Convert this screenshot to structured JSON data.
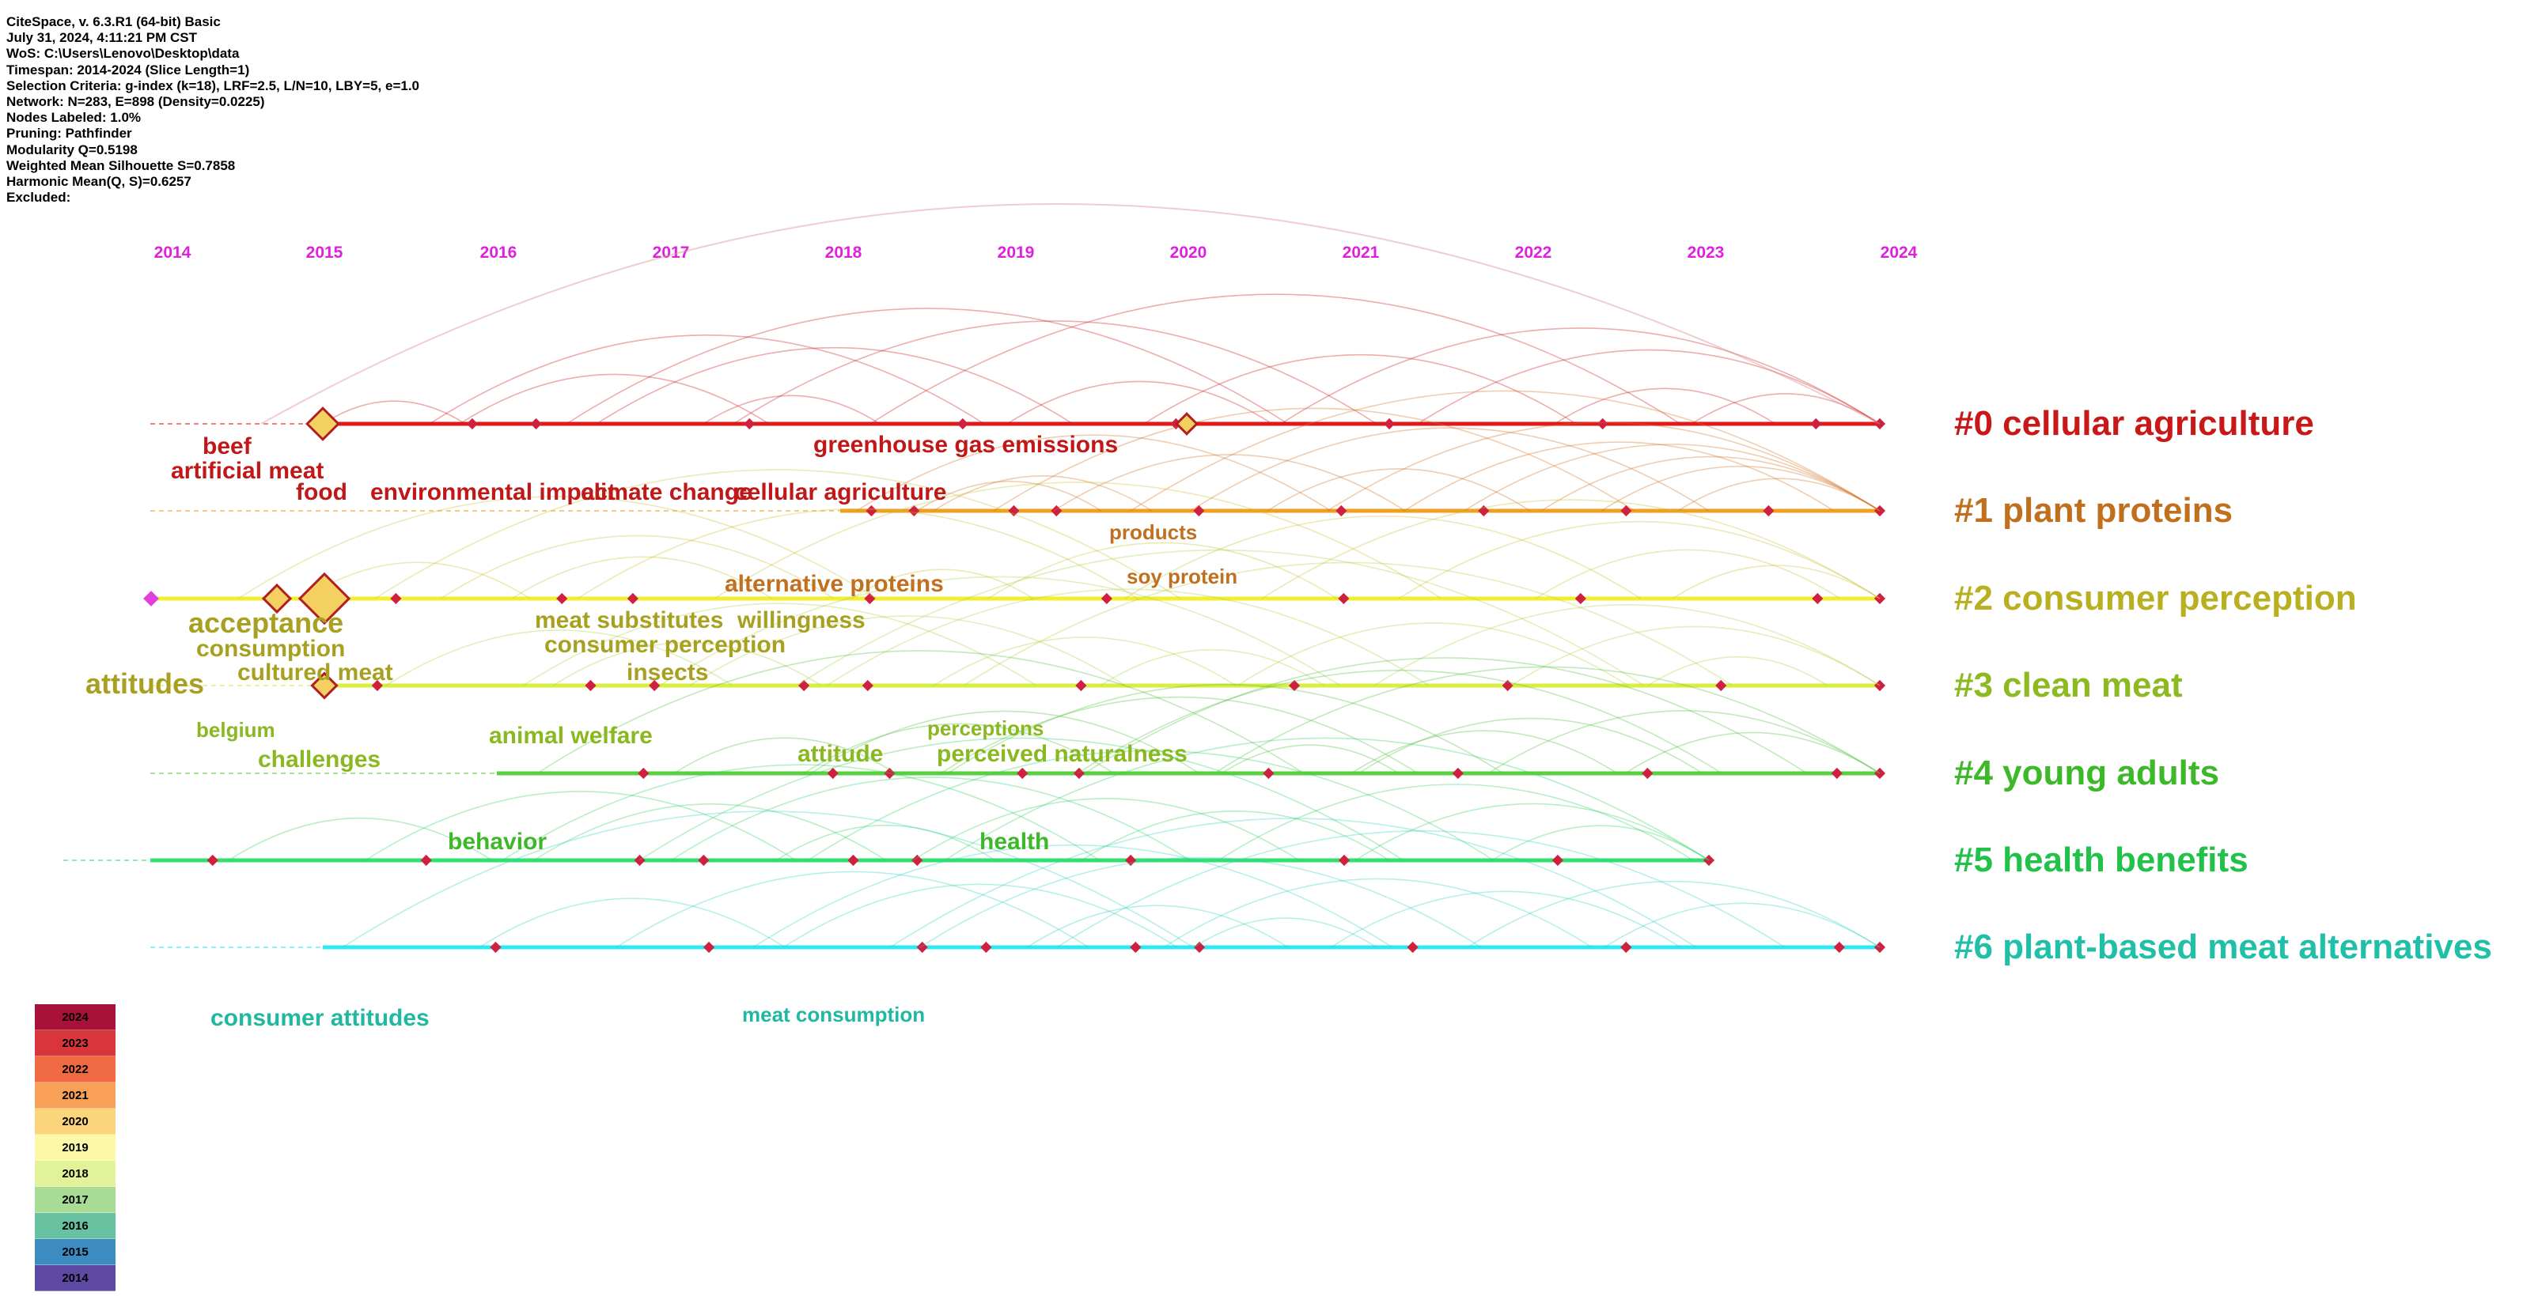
{
  "info": [
    "CiteSpace, v. 6.3.R1 (64-bit) Basic",
    "July 31, 2024, 4:11:21 PM CST",
    "WoS: C:\\Users\\Lenovo\\Desktop\\data",
    "Timespan: 2014-2024 (Slice Length=1)",
    "Selection Criteria: g-index (k=18), LRF=2.5, L/N=10, LBY=5, e=1.0",
    "Network: N=283, E=898 (Density=0.0225)",
    "Nodes Labeled: 1.0%",
    "Pruning: Pathfinder",
    "Modularity Q=0.5198",
    "Weighted Mean Silhouette S=0.7858",
    "Harmonic Mean(Q, S)=0.6257",
    "Excluded:"
  ],
  "years": [
    "2014",
    "2015",
    "2016",
    "2017",
    "2018",
    "2019",
    "2020",
    "2021",
    "2022",
    "2023",
    "2024"
  ],
  "clusters": [
    {
      "label": "#0 cellular agriculture",
      "color": "#c81818",
      "line": "#e01a1a"
    },
    {
      "label": "#1 plant proteins",
      "color": "#c0701c",
      "line": "#f0a020"
    },
    {
      "label": "#2 consumer perception",
      "color": "#b8b020",
      "line": "#f2ee30"
    },
    {
      "label": "#3 clean meat",
      "color": "#8cba20",
      "line": "#d8ee40"
    },
    {
      "label": "#4 young adults",
      "color": "#3cb828",
      "line": "#58d040"
    },
    {
      "label": "#5 health benefits",
      "color": "#22c24a",
      "line": "#30e070"
    },
    {
      "label": "#6 plant-based meat alternatives",
      "color": "#20c0a8",
      "line": "#30e8f0"
    }
  ],
  "keywords": [
    {
      "text": "beef",
      "color": "#c01818",
      "size": "l"
    },
    {
      "text": "artificial meat",
      "color": "#c01818",
      "size": "l"
    },
    {
      "text": "food",
      "color": "#c01818",
      "size": "l"
    },
    {
      "text": "environmental impact",
      "color": "#c01818",
      "size": "l"
    },
    {
      "text": "climate change",
      "color": "#c01818",
      "size": "l"
    },
    {
      "text": "cellular agriculture",
      "color": "#c01818",
      "size": "l"
    },
    {
      "text": "greenhouse gas emissions",
      "color": "#c01818",
      "size": "l"
    },
    {
      "text": "products",
      "color": "#c07020",
      "size": "m"
    },
    {
      "text": "soy protein",
      "color": "#c07020",
      "size": "m"
    },
    {
      "text": "alternative proteins",
      "color": "#c07020",
      "size": "l"
    },
    {
      "text": "acceptance",
      "color": "#a8a020",
      "size": "xl"
    },
    {
      "text": "consumption",
      "color": "#a8a020",
      "size": "l"
    },
    {
      "text": "cultured meat",
      "color": "#a8a020",
      "size": "l"
    },
    {
      "text": "attitudes",
      "color": "#a8a020",
      "size": "xl"
    },
    {
      "text": "meat substitutes",
      "color": "#a8a020",
      "size": "l"
    },
    {
      "text": "willingness",
      "color": "#a8a020",
      "size": "l"
    },
    {
      "text": "consumer perception",
      "color": "#a8a020",
      "size": "l"
    },
    {
      "text": "insects",
      "color": "#a8a020",
      "size": "l"
    },
    {
      "text": "belgium",
      "color": "#8ab820",
      "size": "m"
    },
    {
      "text": "challenges",
      "color": "#8ab820",
      "size": "l"
    },
    {
      "text": "animal welfare",
      "color": "#8ab820",
      "size": "l"
    },
    {
      "text": "perceptions",
      "color": "#8ab820",
      "size": "m"
    },
    {
      "text": "attitude",
      "color": "#8ab820",
      "size": "l"
    },
    {
      "text": "perceived naturalness",
      "color": "#8ab820",
      "size": "l"
    },
    {
      "text": "behavior",
      "color": "#3cb828",
      "size": "l"
    },
    {
      "text": "health",
      "color": "#3cb828",
      "size": "l"
    },
    {
      "text": "consumer attitudes",
      "color": "#20b8a0",
      "size": "l"
    },
    {
      "text": "meat consumption",
      "color": "#20b8a0",
      "size": "m"
    }
  ],
  "legend": [
    {
      "year": "2024",
      "color": "#a8123a"
    },
    {
      "year": "2023",
      "color": "#d8363a"
    },
    {
      "year": "2022",
      "color": "#f06a44"
    },
    {
      "year": "2021",
      "color": "#f8a058"
    },
    {
      "year": "2020",
      "color": "#fcd47c"
    },
    {
      "year": "2019",
      "color": "#fcf8a8"
    },
    {
      "year": "2018",
      "color": "#e2f298"
    },
    {
      "year": "2017",
      "color": "#a8dc94"
    },
    {
      "year": "2016",
      "color": "#68c2a2"
    },
    {
      "year": "2015",
      "color": "#3c8cc2"
    },
    {
      "year": "2014",
      "color": "#5e4aa2"
    }
  ]
}
